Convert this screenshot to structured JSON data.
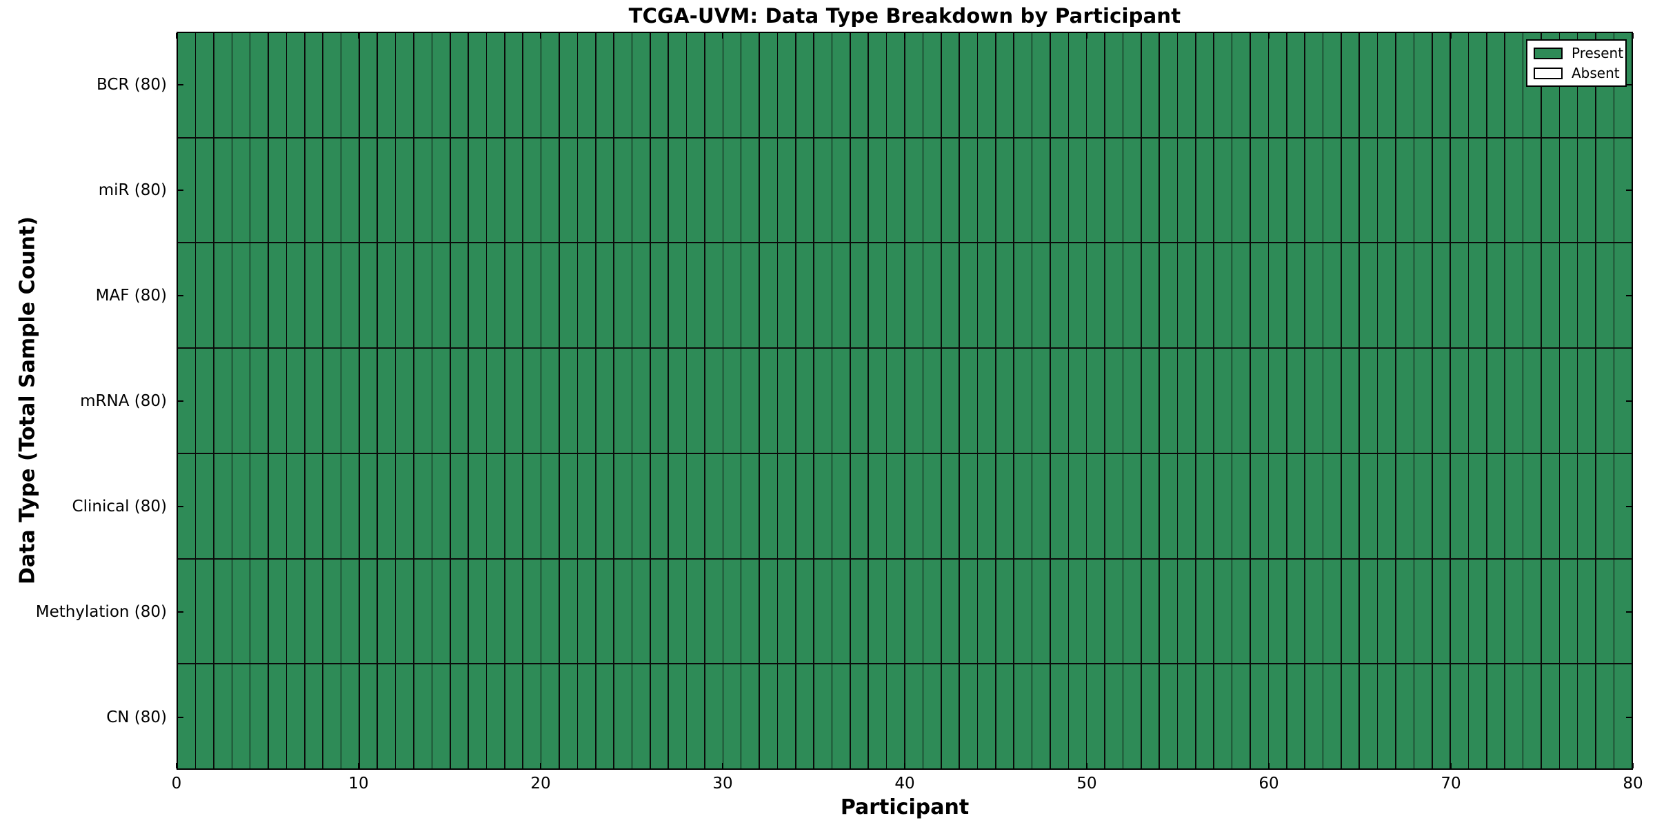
{
  "figure": {
    "title": "TCGA-UVM: Data Type Breakdown by Participant",
    "xlabel": "Participant",
    "ylabel": "Data Type (Total Sample Count)"
  },
  "legend": {
    "entries": [
      {
        "label": "Present",
        "color": "#2E8B57"
      },
      {
        "label": "Absent",
        "color": "#FFFFFF"
      }
    ]
  },
  "chart_data": {
    "type": "heatmap",
    "title": "TCGA-UVM: Data Type Breakdown by Participant",
    "xlabel": "Participant",
    "ylabel": "Data Type (Total Sample Count)",
    "x_range": [
      0,
      80
    ],
    "x_ticks": [
      0,
      10,
      20,
      30,
      40,
      50,
      60,
      70,
      80
    ],
    "n_participants": 80,
    "grid_on": false,
    "legend_position": "upper right",
    "colors": {
      "present": "#2E8B57",
      "absent": "#FFFFFF",
      "cell_edge": "#0a0a0a"
    },
    "rows": [
      {
        "label": "BCR (80)",
        "data_type": "BCR",
        "total_sample_count": 80,
        "present_participants": 80,
        "absent_participants": 0
      },
      {
        "label": "miR (80)",
        "data_type": "miR",
        "total_sample_count": 80,
        "present_participants": 80,
        "absent_participants": 0
      },
      {
        "label": "MAF (80)",
        "data_type": "MAF",
        "total_sample_count": 80,
        "present_participants": 80,
        "absent_participants": 0
      },
      {
        "label": "mRNA (80)",
        "data_type": "mRNA",
        "total_sample_count": 80,
        "present_participants": 80,
        "absent_participants": 0
      },
      {
        "label": "Clinical (80)",
        "data_type": "Clinical",
        "total_sample_count": 80,
        "present_participants": 80,
        "absent_participants": 0
      },
      {
        "label": "Methylation (80)",
        "data_type": "Methylation",
        "total_sample_count": 80,
        "present_participants": 80,
        "absent_participants": 0
      },
      {
        "label": "CN (80)",
        "data_type": "CN",
        "total_sample_count": 80,
        "present_participants": 80,
        "absent_participants": 0
      }
    ]
  }
}
